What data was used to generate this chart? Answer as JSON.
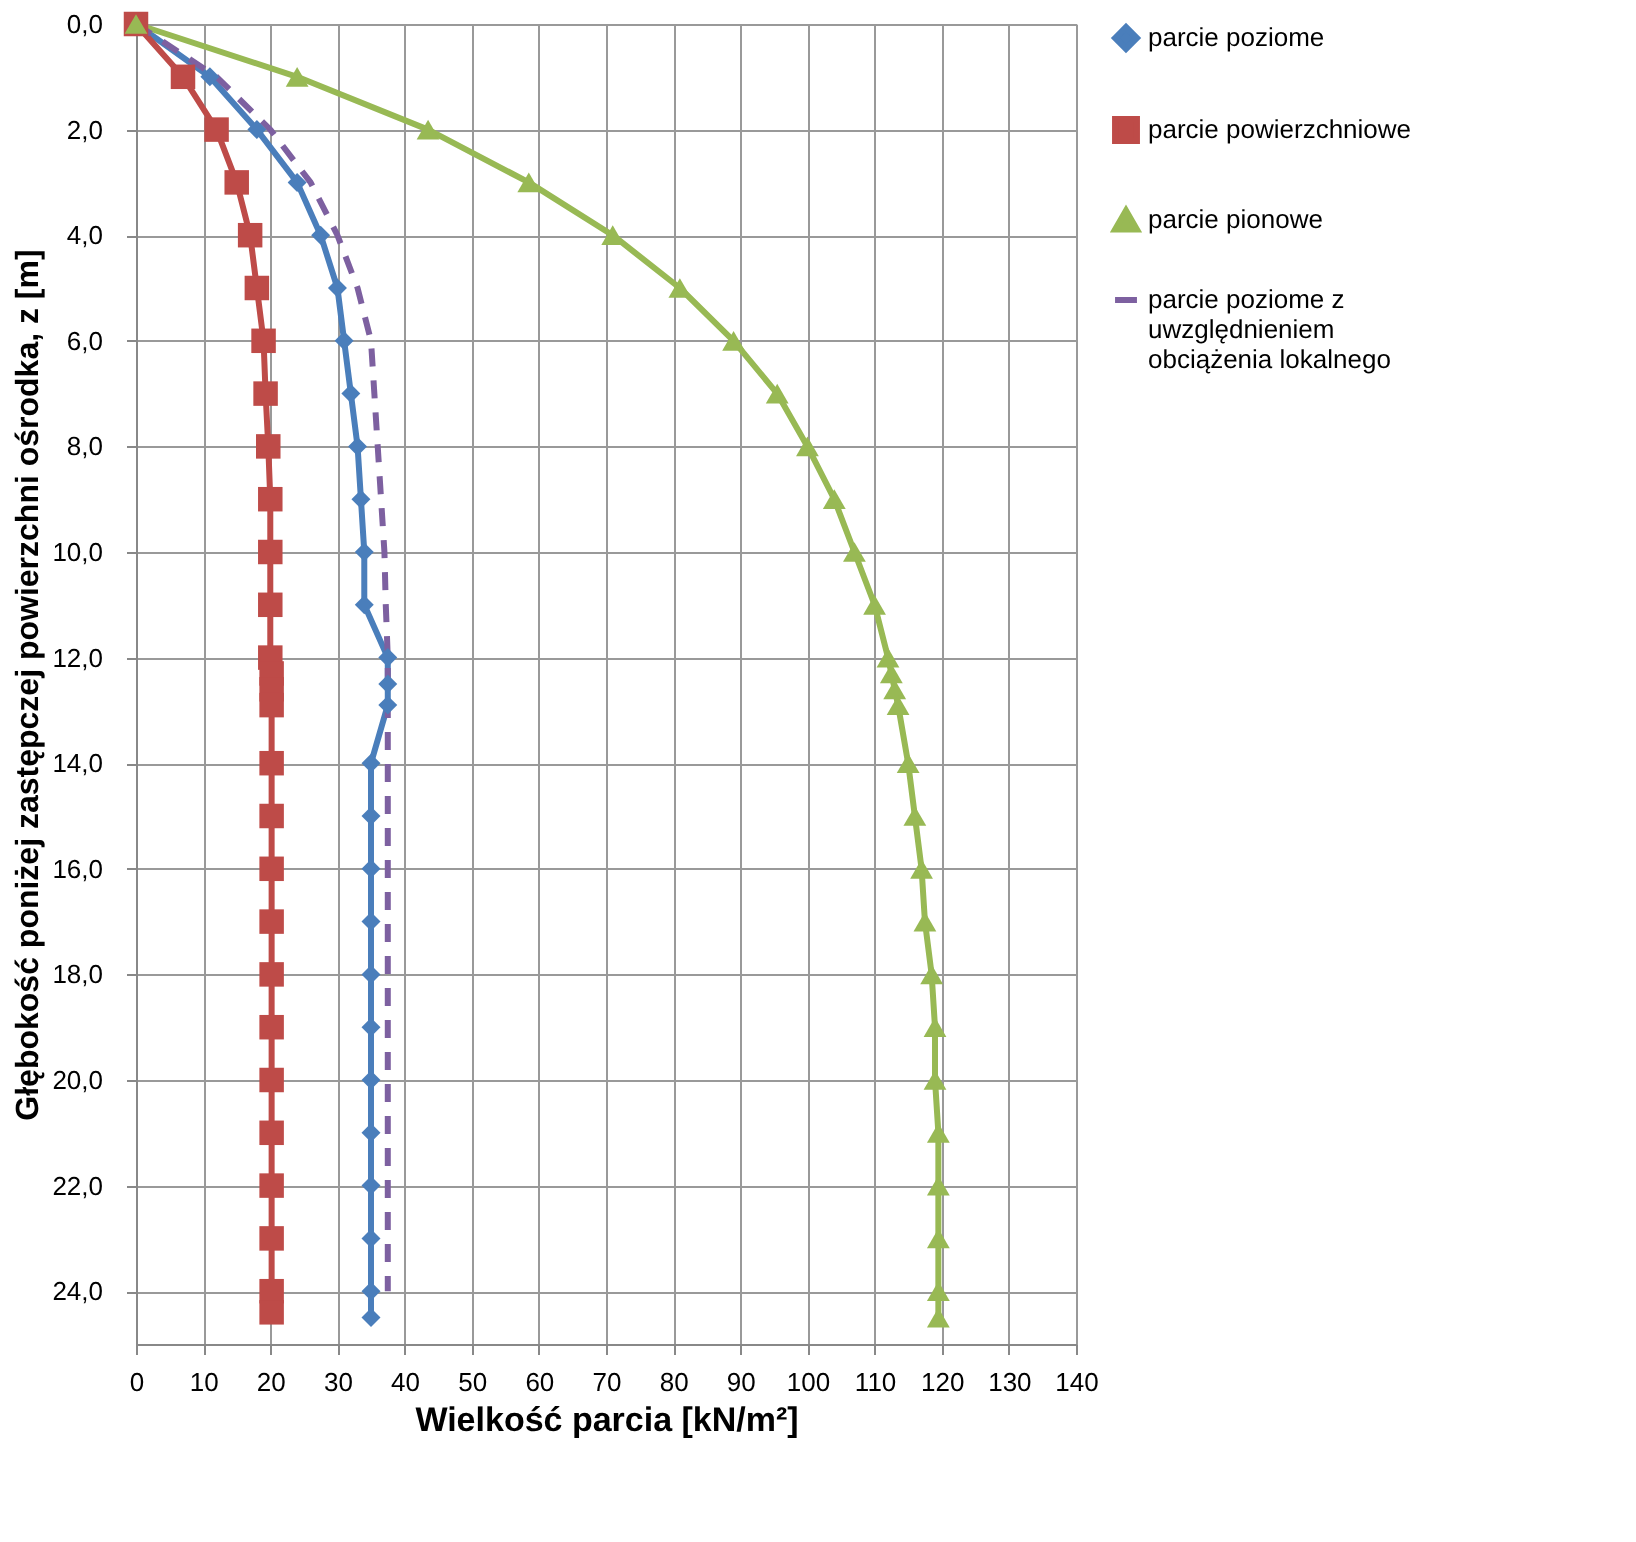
{
  "chart_data": {
    "type": "line",
    "xlabel": "Wielkość parcia [kN/m²]",
    "ylabel": "Głębokość poniżej zastępczej powierzchni ośrodka, z [m]",
    "xlim": [
      0,
      140
    ],
    "xticks": [
      0,
      10,
      20,
      30,
      40,
      50,
      60,
      70,
      80,
      90,
      100,
      110,
      120,
      130,
      140
    ],
    "ylim": [
      25,
      0
    ],
    "yticks": [
      {
        "value": 0,
        "label": "0,0"
      },
      {
        "value": 2,
        "label": "2,0"
      },
      {
        "value": 4,
        "label": "4,0"
      },
      {
        "value": 6,
        "label": "6,0"
      },
      {
        "value": 8,
        "label": "8,0"
      },
      {
        "value": 10,
        "label": "10,0"
      },
      {
        "value": 12,
        "label": "12,0"
      },
      {
        "value": 14,
        "label": "14,0"
      },
      {
        "value": 16,
        "label": "16,0"
      },
      {
        "value": 18,
        "label": "18,0"
      },
      {
        "value": 20,
        "label": "20,0"
      },
      {
        "value": 22,
        "label": "22,0"
      },
      {
        "value": 24,
        "label": "24,0"
      }
    ],
    "grid": true,
    "legend": "right",
    "series": [
      {
        "name": "parcie poziome",
        "color": "#4a7ebb",
        "marker": "diamond",
        "line_style": "solid",
        "x": [
          0,
          11,
          18,
          24,
          27.5,
          30,
          31,
          32,
          33,
          33.5,
          34,
          34,
          37.5,
          37.5,
          37.5,
          35,
          35,
          35,
          35,
          35,
          35,
          35,
          35,
          35,
          35,
          35,
          35
        ],
        "values": [
          0,
          1,
          2,
          3,
          4,
          5,
          6,
          7,
          8,
          9,
          10,
          11,
          12,
          12.5,
          12.9,
          14,
          15,
          16,
          17,
          18,
          19,
          20,
          21,
          22,
          23,
          24,
          24.5
        ]
      },
      {
        "name": "parcie powierzchniowe",
        "color": "#be4b48",
        "marker": "square",
        "line_style": "solid",
        "x": [
          0,
          7,
          12,
          15,
          17,
          18,
          19,
          19.3,
          19.7,
          20,
          20,
          20,
          20,
          20.2,
          20.2,
          20.2,
          20.2,
          20.2,
          20.2,
          20.2,
          20.2,
          20.2,
          20.2,
          20.2,
          20.2,
          20.2,
          20.2,
          20.2
        ],
        "values": [
          0,
          1,
          2,
          3,
          4,
          5,
          6,
          7,
          8,
          9,
          10,
          11,
          12,
          12.3,
          12.6,
          12.9,
          14,
          15,
          16,
          17,
          18,
          19,
          20,
          21,
          22,
          23,
          24,
          24.4
        ]
      },
      {
        "name": "parcie pionowe",
        "color": "#98b954",
        "marker": "triangle",
        "line_style": "solid",
        "x": [
          0,
          24,
          43.5,
          58.5,
          71,
          81,
          89,
          95.5,
          100,
          104,
          107,
          110,
          112,
          112.5,
          113,
          113.5,
          115,
          116,
          117,
          117.5,
          118.5,
          119,
          119,
          119.5,
          119.5,
          119.5,
          119.5,
          119.5
        ],
        "values": [
          0,
          1,
          2,
          3,
          4,
          5,
          6,
          7,
          8,
          9,
          10,
          11,
          12,
          12.3,
          12.6,
          12.9,
          14,
          15,
          16,
          17,
          18,
          19,
          20,
          21,
          22,
          23,
          24,
          24.5
        ]
      },
      {
        "name": "parcie poziome z uwzględnieniem obciążenia lokalnego",
        "color": "#7d60a0",
        "marker": "none",
        "line_style": "dashed",
        "x": [
          0,
          12,
          20,
          26,
          30,
          33,
          35,
          35.5,
          36,
          36.5,
          37,
          37.2,
          37.5,
          37.5,
          37.5,
          37.5
        ],
        "values": [
          0,
          1,
          2,
          3,
          4,
          5,
          6,
          7,
          8,
          9,
          10,
          11,
          12,
          15,
          20,
          24
        ]
      }
    ]
  }
}
